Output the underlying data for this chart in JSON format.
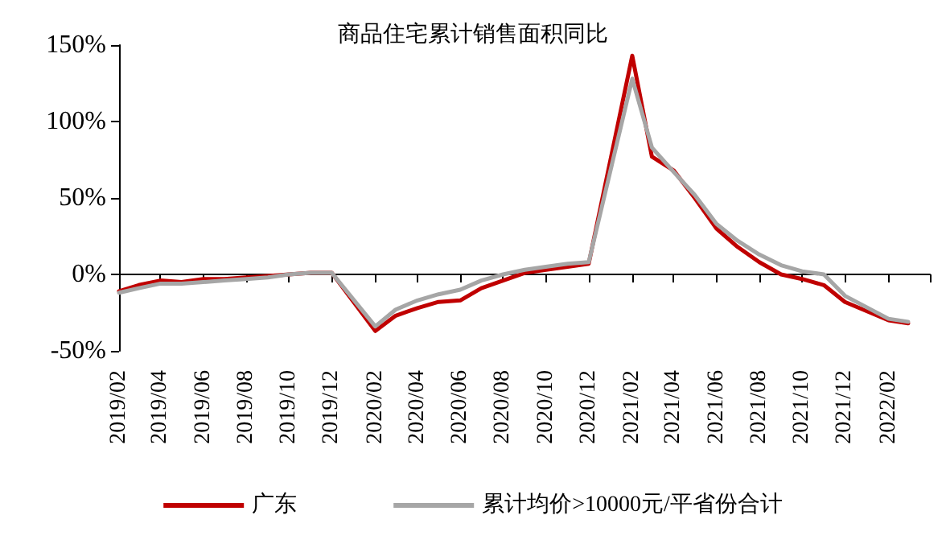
{
  "chart_data": {
    "type": "line",
    "title": "商品住宅累计销售面积同比",
    "x": [
      "2019-02",
      "2019-03",
      "2019-04",
      "2019-05",
      "2019-06",
      "2019-07",
      "2019-08",
      "2019-09",
      "2019-10",
      "2019-11",
      "2019-12",
      "2020-02",
      "2020-03",
      "2020-04",
      "2020-05",
      "2020-06",
      "2020-07",
      "2020-08",
      "2020-09",
      "2020-10",
      "2020-11",
      "2020-12",
      "2021-02",
      "2021-03",
      "2021-04",
      "2021-05",
      "2021-06",
      "2021-07",
      "2021-08",
      "2021-09",
      "2021-10",
      "2021-11",
      "2021-12",
      "2022-02",
      "2022-03"
    ],
    "series": [
      {
        "name": "广东",
        "color": "#c00000",
        "values": [
          -11,
          -7,
          -4,
          -5,
          -3,
          -3,
          -2,
          -1,
          0,
          1,
          1,
          -37,
          -27,
          -22,
          -18,
          -17,
          -9,
          -4,
          1,
          3,
          5,
          7,
          143,
          77,
          68,
          50,
          30,
          18,
          8,
          0,
          -3,
          -7,
          -18,
          -30,
          -32
        ]
      },
      {
        "name": "累计均价>10000元/平省份合计",
        "color": "#a6a6a6",
        "values": [
          -12,
          -9,
          -6,
          -6,
          -5,
          -4,
          -3,
          -2,
          0,
          1,
          1,
          -34,
          -23,
          -17,
          -13,
          -10,
          -4,
          0,
          3,
          5,
          7,
          8,
          128,
          83,
          67,
          52,
          33,
          22,
          13,
          6,
          2,
          0,
          -14,
          -29,
          -31
        ]
      }
    ],
    "xlim": [
      "2019-02",
      "2022-04"
    ],
    "xticks": [
      {
        "value": "2019-02",
        "label": "2019/02"
      },
      {
        "value": "2019-04",
        "label": "2019/04"
      },
      {
        "value": "2019-06",
        "label": "2019/06"
      },
      {
        "value": "2019-08",
        "label": "2019/08"
      },
      {
        "value": "2019-10",
        "label": "2019/10"
      },
      {
        "value": "2019-12",
        "label": "2019/12"
      },
      {
        "value": "2020-02",
        "label": "2020/02"
      },
      {
        "value": "2020-04",
        "label": "2020/04"
      },
      {
        "value": "2020-06",
        "label": "2020/06"
      },
      {
        "value": "2020-08",
        "label": "2020/08"
      },
      {
        "value": "2020-10",
        "label": "2020/10"
      },
      {
        "value": "2020-12",
        "label": "2020/12"
      },
      {
        "value": "2021-02",
        "label": "2021/02"
      },
      {
        "value": "2021-04",
        "label": "2021/04"
      },
      {
        "value": "2021-06",
        "label": "2021/06"
      },
      {
        "value": "2021-08",
        "label": "2021/08"
      },
      {
        "value": "2021-10",
        "label": "2021/10"
      },
      {
        "value": "2021-12",
        "label": "2021/12"
      },
      {
        "value": "2022-02",
        "label": "2022/02"
      },
      {
        "value": "2022-04",
        "label": null
      }
    ],
    "ylim": [
      -50,
      150
    ],
    "yticks": [
      {
        "value": -50,
        "label": "-50%"
      },
      {
        "value": 0,
        "label": "0%"
      },
      {
        "value": 50,
        "label": "50%"
      },
      {
        "value": 100,
        "label": "100%"
      },
      {
        "value": 150,
        "label": "150%"
      }
    ],
    "legend": "bottom",
    "marker": "none",
    "line_style": "solid"
  }
}
